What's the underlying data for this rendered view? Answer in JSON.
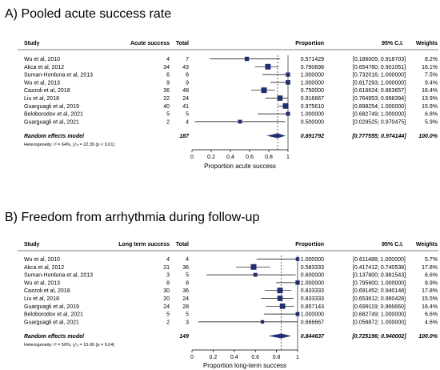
{
  "chart_data": [
    {
      "type": "forest",
      "panel_label": "A)",
      "title": "Pooled acute success rate",
      "columns": {
        "study": "Study",
        "events": "Acute success",
        "total": "Total",
        "proportion": "Proportion",
        "ci": "95% C.I.",
        "weights": "Weights"
      },
      "studies": [
        {
          "study": "Wu et al, 2010",
          "events": "4",
          "total": "7",
          "proportion_text": "0.571429",
          "ci_text": "[0.186005; 0.918703]",
          "weight_text": "8.2%",
          "p": 0.571429,
          "lo": 0.186005,
          "hi": 0.918703,
          "w": 8.2
        },
        {
          "study": "Akca et al, 2012",
          "events": "34",
          "total": "43",
          "proportion_text": "0.790698",
          "ci_text": "[0.654760; 0.901051]",
          "weight_text": "16.1%",
          "p": 0.790698,
          "lo": 0.65476,
          "hi": 0.901051,
          "w": 16.1
        },
        {
          "study": "Suman-Horduna et al, 2013",
          "events": "6",
          "total": "6",
          "proportion_text": "1.000000",
          "ci_text": "[0.732016; 1.000000]",
          "weight_text": "7.5%",
          "p": 1.0,
          "lo": 0.732016,
          "hi": 1.0,
          "w": 7.5
        },
        {
          "study": "Wu et al, 2013",
          "events": "9",
          "total": "9",
          "proportion_text": "1.000000",
          "ci_text": "[0.817293; 1.000000]",
          "weight_text": "9.4%",
          "p": 1.0,
          "lo": 0.817293,
          "hi": 1.0,
          "w": 9.4
        },
        {
          "study": "Cazzoli et al, 2018",
          "events": "36",
          "total": "48",
          "proportion_text": "0.750000",
          "ci_text": "[0.616624; 0.863657]",
          "weight_text": "16.4%",
          "p": 0.75,
          "lo": 0.616624,
          "hi": 0.863657,
          "w": 16.4
        },
        {
          "study": "Liu et al, 2018",
          "events": "22",
          "total": "24",
          "proportion_text": "0.916667",
          "ci_text": "[0.764953; 0.998394]",
          "weight_text": "13.9%",
          "p": 0.916667,
          "lo": 0.764953,
          "hi": 0.998394,
          "w": 13.9
        },
        {
          "study": "Guarguagli et al, 2019",
          "events": "40",
          "total": "41",
          "proportion_text": "0.975610",
          "ci_text": "[0.898254; 1.000000]",
          "weight_text": "15.9%",
          "p": 0.97561,
          "lo": 0.898254,
          "hi": 1.0,
          "w": 15.9
        },
        {
          "study": "Beloborodov et al, 2021",
          "events": "5",
          "total": "5",
          "proportion_text": "1.000000",
          "ci_text": "[0.682749; 1.000000]",
          "weight_text": "6.8%",
          "p": 1.0,
          "lo": 0.682749,
          "hi": 1.0,
          "w": 6.8
        },
        {
          "study": "Guarguagli et al, 2021",
          "events": "2",
          "total": "4",
          "proportion_text": "0.500000",
          "ci_text": "[0.029525; 0.970475]",
          "weight_text": "5.9%",
          "p": 0.5,
          "lo": 0.029525,
          "hi": 0.970475,
          "w": 5.9
        }
      ],
      "pooled": {
        "label": "Random effects model",
        "total": "187",
        "proportion_text": "0.891792",
        "ci_text": "[0.777555; 0.974144]",
        "weight_text": "100.0%",
        "p": 0.891792,
        "lo": 0.777555,
        "hi": 0.974144
      },
      "heterogeneity": "Heterogeneity: I² = 64%, χ²₈ = 22.39 (p < 0.01)",
      "xticks": [
        0,
        0.2,
        0.4,
        0.6,
        0.8,
        1
      ],
      "xtick_labels": [
        "0",
        "0.2",
        "0.4",
        "0.6",
        "0.8",
        "1"
      ],
      "xlim": [
        0,
        1
      ],
      "xlabel": "Proportion acute success"
    },
    {
      "type": "forest",
      "panel_label": "B)",
      "title": "Freedom from arrhythmia during follow-up",
      "columns": {
        "study": "Study",
        "events": "Long term success",
        "total": "Total",
        "proportion": "Proportion",
        "ci": "95% C.I.",
        "weights": "Weights"
      },
      "studies": [
        {
          "study": "Wu et al, 2010",
          "events": "4",
          "total": "4",
          "proportion_text": "1.000000",
          "ci_text": "[0.611488; 1.000000]",
          "weight_text": "5.7%",
          "p": 1.0,
          "lo": 0.611488,
          "hi": 1.0,
          "w": 5.7
        },
        {
          "study": "Akca et al, 2012",
          "events": "21",
          "total": "36",
          "proportion_text": "0.583333",
          "ci_text": "[0.417412; 0.740538]",
          "weight_text": "17.8%",
          "p": 0.583333,
          "lo": 0.417412,
          "hi": 0.740538,
          "w": 17.8
        },
        {
          "study": "Suman-Horduna et al, 2013",
          "events": "3",
          "total": "5",
          "proportion_text": "0.600000",
          "ci_text": "[0.137800; 0.981543]",
          "weight_text": "6.6%",
          "p": 0.6,
          "lo": 0.1378,
          "hi": 0.981543,
          "w": 6.6
        },
        {
          "study": "Wu et al, 2013",
          "events": "8",
          "total": "8",
          "proportion_text": "1.000000",
          "ci_text": "[0.795600; 1.000000]",
          "weight_text": "8.9%",
          "p": 1.0,
          "lo": 0.7956,
          "hi": 1.0,
          "w": 8.9
        },
        {
          "study": "Cazzoli et al, 2018",
          "events": "30",
          "total": "36",
          "proportion_text": "0.833333",
          "ci_text": "[0.691452; 0.940148]",
          "weight_text": "17.8%",
          "p": 0.833333,
          "lo": 0.691452,
          "hi": 0.940148,
          "w": 17.8
        },
        {
          "study": "Liu et al, 2018",
          "events": "20",
          "total": "24",
          "proportion_text": "0.833333",
          "ci_text": "[0.653612; 0.960428]",
          "weight_text": "15.5%",
          "p": 0.833333,
          "lo": 0.653612,
          "hi": 0.960428,
          "w": 15.5
        },
        {
          "study": "Guarguagli et al, 2019",
          "events": "24",
          "total": "28",
          "proportion_text": "0.857143",
          "ci_text": "[0.699119; 0.966660]",
          "weight_text": "16.4%",
          "p": 0.857143,
          "lo": 0.699119,
          "hi": 0.96666,
          "w": 16.4
        },
        {
          "study": "Beloborodov et al, 2021",
          "events": "5",
          "total": "5",
          "proportion_text": "1.000000",
          "ci_text": "[0.682749; 1.000000]",
          "weight_text": "6.6%",
          "p": 1.0,
          "lo": 0.682749,
          "hi": 1.0,
          "w": 6.6
        },
        {
          "study": "Guarguagli et al, 2021",
          "events": "2",
          "total": "3",
          "proportion_text": "0.666667",
          "ci_text": "[0.058872; 1.000000]",
          "weight_text": "4.6%",
          "p": 0.666667,
          "lo": 0.058872,
          "hi": 1.0,
          "w": 4.6
        }
      ],
      "pooled": {
        "label": "Random effects model",
        "total": "149",
        "proportion_text": "0.844637",
        "ci_text": "[0.725196; 0.940002]",
        "weight_text": "100.0%",
        "p": 0.844637,
        "lo": 0.725196,
        "hi": 0.940002
      },
      "heterogeneity": "Heterogeneity: I² = 50%, χ²₈ = 15.96 (p = 0.04)",
      "xticks": [
        0,
        0.2,
        0.4,
        0.6,
        0.8,
        1
      ],
      "xtick_labels": [
        "0",
        "0.2",
        "0.4",
        "0.6",
        "0.8",
        "1"
      ],
      "xlim": [
        0,
        1
      ],
      "xlabel": "Proportion long-term success"
    }
  ],
  "colors": {
    "square": "#1f2f6f",
    "diamond": "#1f2f6f",
    "line": "#000000",
    "rule": "#000000"
  }
}
